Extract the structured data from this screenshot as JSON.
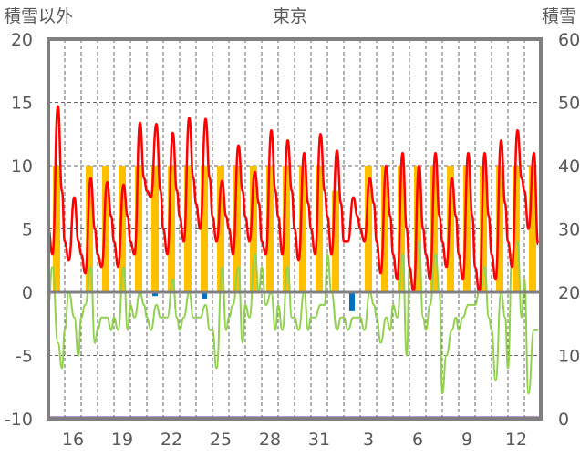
{
  "chart_data": {
    "type": "line",
    "title": "東京",
    "ylabel_left": "積雪以外",
    "ylabel_right": "積雪",
    "ylim_left": [
      -10,
      20
    ],
    "ylim_right": [
      0,
      60
    ],
    "yticks_left": [
      "20",
      "15",
      "10",
      "5",
      "0",
      "-5",
      "-10"
    ],
    "yticks_right": [
      "60",
      "50",
      "40",
      "30",
      "20",
      "10",
      "0"
    ],
    "days": [
      "15",
      "16",
      "17",
      "18",
      "19",
      "20",
      "21",
      "22",
      "23",
      "24",
      "25",
      "26",
      "27",
      "28",
      "29",
      "30",
      "31",
      "1",
      "2",
      "3",
      "4",
      "5",
      "6",
      "7",
      "8",
      "9",
      "10",
      "11",
      "12",
      "13"
    ],
    "xtick_labels": [
      "16",
      "19",
      "22",
      "25",
      "28",
      "31",
      "3",
      "6",
      "9",
      "12"
    ],
    "samples_per_day_hours": [
      0,
      6,
      14,
      20
    ],
    "series": [
      {
        "name": "temperature",
        "color": "#ff0000",
        "values": [
          5,
          3,
          14.7,
          8,
          4,
          2.5,
          7.5,
          4,
          3,
          1.5,
          9,
          5,
          3,
          2,
          8.7,
          6,
          4,
          2,
          8.5,
          6,
          4,
          3,
          13.4,
          9,
          8,
          7.5,
          13.3,
          8,
          5,
          3,
          12.6,
          8,
          6,
          4,
          13.8,
          9,
          7,
          5,
          13.7,
          9,
          6,
          4,
          8.8,
          6,
          5,
          3,
          11.6,
          8,
          6,
          4,
          9.5,
          7,
          4,
          3,
          12.8,
          8,
          6,
          3,
          12,
          8,
          5,
          2.5,
          11,
          7,
          5,
          3,
          12.5,
          8,
          6,
          3,
          11.2,
          7,
          4,
          4,
          7.5,
          6,
          5,
          4,
          9,
          7,
          4,
          1.5,
          10,
          6,
          3,
          1,
          11,
          5,
          2,
          0,
          10,
          5,
          3,
          1,
          11,
          6,
          4,
          2,
          9,
          6,
          3,
          1,
          11,
          6,
          2,
          0,
          11,
          6,
          3,
          1,
          12,
          7,
          4,
          2,
          12.8,
          9,
          8,
          5,
          11,
          3.8
        ]
      },
      {
        "name": "dewpoint",
        "color": "#92d050",
        "values": [
          -1,
          2,
          -4,
          -6,
          -3,
          0,
          -2,
          -5,
          -2,
          -1,
          2,
          -4,
          -3,
          -2,
          -2,
          -3,
          -2,
          -3,
          2,
          -3,
          -1,
          -2,
          0,
          -1,
          -2,
          -3,
          -1,
          -2,
          -2,
          -2,
          1,
          -2,
          -3,
          -2,
          0,
          -2,
          -2,
          -2,
          -1,
          -3,
          -3,
          -6,
          2,
          -3,
          -2,
          -1,
          2,
          -4,
          -1,
          -2,
          3,
          0,
          2,
          -1,
          0,
          -3,
          -1,
          -3,
          2,
          -2,
          -2,
          -3,
          0,
          -3,
          -2,
          -2,
          -1,
          -1,
          3,
          0,
          -3,
          -2,
          -2,
          -3,
          -2,
          -2,
          -2,
          -3,
          0,
          -1,
          -2,
          -4,
          -2,
          -3,
          -1,
          -2,
          3,
          -5,
          2,
          0,
          4,
          -2,
          -3,
          -1,
          3,
          0,
          -8,
          -5,
          -3,
          -2,
          -3,
          -2,
          -1,
          -1,
          -1,
          0,
          2,
          -2,
          -3,
          -7,
          0,
          -2,
          -6,
          3,
          4,
          -2,
          1,
          -8,
          -3,
          -3
        ]
      }
    ],
    "sunshine": {
      "color": "#ffc000",
      "values": [
        10,
        0,
        10,
        10,
        10,
        10,
        10,
        10,
        10,
        10,
        10,
        10,
        10,
        10,
        10,
        10,
        10,
        8,
        0,
        10,
        10,
        10,
        10,
        10,
        10,
        10,
        10,
        10,
        10,
        10
      ]
    },
    "precipitation": {
      "color": "#0070c0",
      "values": [
        0,
        0,
        0,
        0,
        0,
        0,
        0.3,
        0,
        0,
        0.5,
        0,
        0,
        0,
        0,
        0,
        0,
        0,
        0,
        1.5,
        0,
        0,
        0,
        0,
        0,
        0,
        0,
        0,
        0,
        0,
        0
      ]
    },
    "snow_depth": {
      "color": "#7030a0",
      "values": [
        0,
        0,
        0,
        0,
        0,
        0,
        0,
        0,
        0,
        0,
        0,
        0,
        0,
        0,
        0,
        0,
        0,
        0,
        0,
        0,
        0,
        0,
        0,
        0,
        0,
        0,
        0,
        0,
        0,
        0
      ]
    }
  }
}
